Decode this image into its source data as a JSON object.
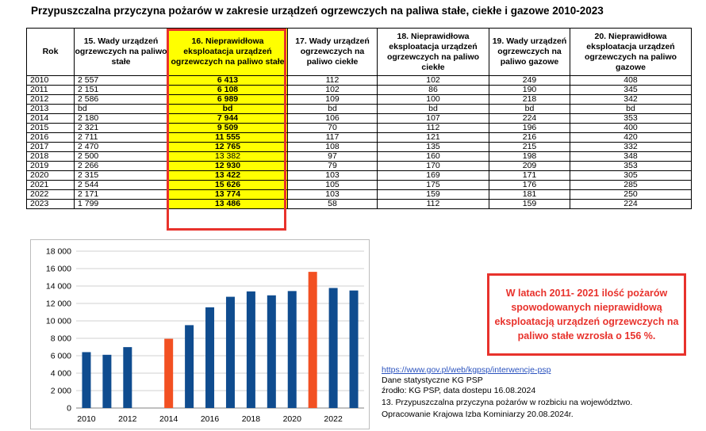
{
  "title": "Przypuszczalna przyczyna pożarów w zakresie urządzeń ogrzewczych na paliwa stałe, ciekłe i gazowe 2010-2023",
  "table": {
    "headers": [
      "Rok",
      "15. Wady urządzeń ogrzewczych na paliwo stałe",
      "16. Nieprawidłowa eksploatacja urządzeń ogrzewczych na paliwo stałe",
      "17. Wady urządzeń ogrzewczych na paliwo ciekłe",
      "18. Nieprawidłowa eksploatacja urządzeń ogrzewczych na paliwo ciekłe",
      "19. Wady urządzeń ogrzewczych na paliwo gazowe",
      "20. Nieprawidłowa eksploatacja urządzeń ogrzewczych na paliwo gazowe"
    ],
    "rows": [
      [
        "2010",
        "2 557",
        "6 413",
        "112",
        "102",
        "249",
        "408"
      ],
      [
        "2011",
        "2 151",
        "6 108",
        "102",
        "86",
        "190",
        "345"
      ],
      [
        "2012",
        "2 586",
        "6 989",
        "109",
        "100",
        "218",
        "342"
      ],
      [
        "2013",
        "bd",
        "bd",
        "bd",
        "bd",
        "bd",
        "bd"
      ],
      [
        "2014",
        "2 180",
        "7 944",
        "106",
        "107",
        "224",
        "353"
      ],
      [
        "2015",
        "2 321",
        "9 509",
        "70",
        "112",
        "196",
        "400"
      ],
      [
        "2016",
        "2 711",
        "11 555",
        "117",
        "121",
        "216",
        "420"
      ],
      [
        "2017",
        "2 470",
        "12 765",
        "108",
        "135",
        "215",
        "332"
      ],
      [
        "2018",
        "2 500",
        "13 382",
        "97",
        "160",
        "198",
        "348"
      ],
      [
        "2019",
        "2 266",
        "12 930",
        "79",
        "170",
        "209",
        "353"
      ],
      [
        "2020",
        "2 315",
        "13 422",
        "103",
        "169",
        "171",
        "305"
      ],
      [
        "2021",
        "2 544",
        "15 626",
        "105",
        "175",
        "176",
        "285"
      ],
      [
        "2022",
        "2 171",
        "13 774",
        "103",
        "159",
        "181",
        "250"
      ],
      [
        "2023",
        "1 799",
        "13 486",
        "58",
        "112",
        "159",
        "224"
      ]
    ]
  },
  "chart_data": {
    "type": "bar",
    "x": [
      2010,
      2011,
      2012,
      2013,
      2014,
      2015,
      2016,
      2017,
      2018,
      2019,
      2020,
      2021,
      2022,
      2023
    ],
    "values": [
      6413,
      6108,
      6989,
      null,
      7944,
      9509,
      11555,
      12765,
      13382,
      12930,
      13422,
      15626,
      13774,
      13486
    ],
    "highlighted_x": [
      2014,
      2021
    ],
    "colors": {
      "default": "#0f4c8f",
      "highlight": "#f25022"
    },
    "ylim": [
      0,
      18000
    ],
    "yticks": [
      "0",
      "2 000",
      "4 000",
      "6 000",
      "8 000",
      "10 000",
      "12 000",
      "14 000",
      "16 000",
      "18 000"
    ],
    "xticks": [
      "2010",
      "2012",
      "2014",
      "2016",
      "2018",
      "2020",
      "2022"
    ],
    "grid": true
  },
  "callout": "W latach 2011- 2021 ilość pożarów spowodowanych nieprawidłową eksploatacją urządzeń ogrzewczych na paliwo stałe wzrosła o 156 %.",
  "source": {
    "link": "https://www.gov.pl/web/kgpsp/interwencje-psp",
    "line1": "Dane statystyczne KG PSP",
    "line2": "źrodło: KG PSP, data dostepu 16.08.2024",
    "line3": "13. Przypuszczalna przyczyna pożarów w rozbiciu na województwo.",
    "line4": "Opracowanie Krajowa Izba Kominiarzy 20.08.2024r."
  }
}
